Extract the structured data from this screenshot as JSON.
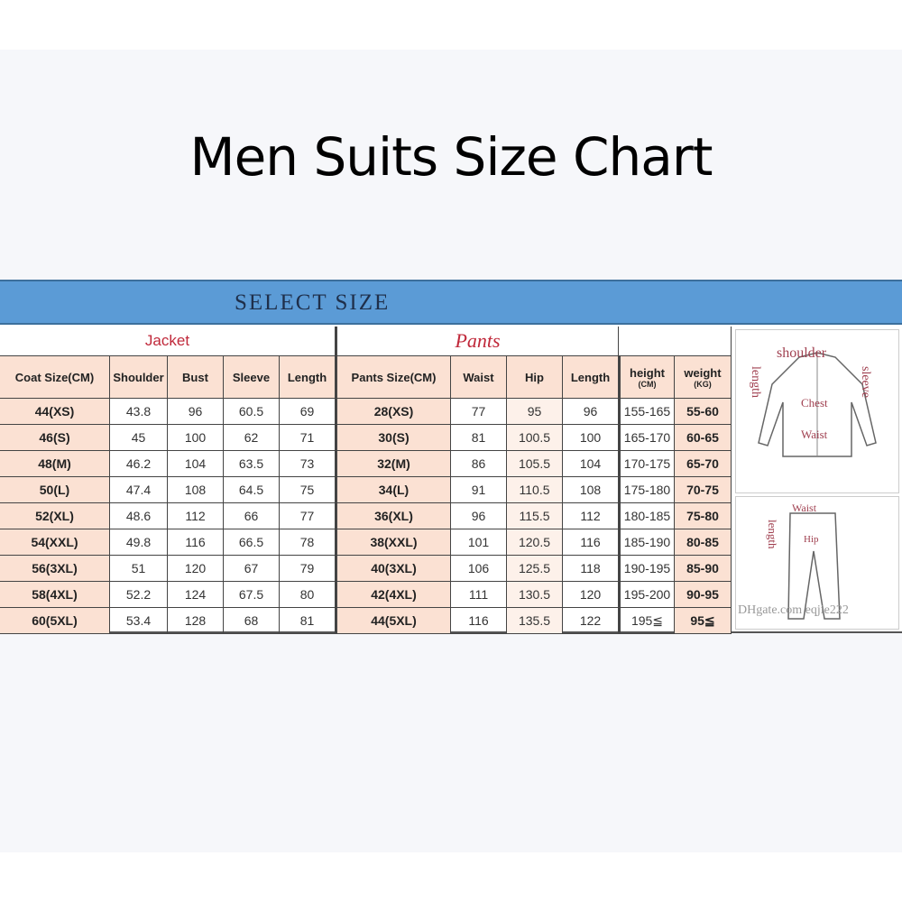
{
  "title": "Men Suits Size Chart",
  "banner": "SELECT SIZE",
  "sections": {
    "jacket": "Jacket",
    "pants": "Pants"
  },
  "colors": {
    "banner": "#5b9bd6",
    "header_cell": "#fbe1d3",
    "section_text": "#c0283a"
  },
  "chart_data": {
    "type": "table",
    "columns": [
      "Coat Size(CM)",
      "Shoulder",
      "Bust",
      "Sleeve",
      "Length",
      "Pants Size(CM)",
      "Waist",
      "Hip",
      "Length",
      "height",
      "weight"
    ],
    "units": {
      "height": "(CM)",
      "weight": "(KG)"
    },
    "rows": [
      [
        "44(XS)",
        "43.8",
        "96",
        "60.5",
        "69",
        "28(XS)",
        "77",
        "95",
        "96",
        "155-165",
        "55-60"
      ],
      [
        "46(S)",
        "45",
        "100",
        "62",
        "71",
        "30(S)",
        "81",
        "100.5",
        "100",
        "165-170",
        "60-65"
      ],
      [
        "48(M)",
        "46.2",
        "104",
        "63.5",
        "73",
        "32(M)",
        "86",
        "105.5",
        "104",
        "170-175",
        "65-70"
      ],
      [
        "50(L)",
        "47.4",
        "108",
        "64.5",
        "75",
        "34(L)",
        "91",
        "110.5",
        "108",
        "175-180",
        "70-75"
      ],
      [
        "52(XL)",
        "48.6",
        "112",
        "66",
        "77",
        "36(XL)",
        "96",
        "115.5",
        "112",
        "180-185",
        "75-80"
      ],
      [
        "54(XXL)",
        "49.8",
        "116",
        "66.5",
        "78",
        "38(XXL)",
        "101",
        "120.5",
        "116",
        "185-190",
        "80-85"
      ],
      [
        "56(3XL)",
        "51",
        "120",
        "67",
        "79",
        "40(3XL)",
        "106",
        "125.5",
        "118",
        "190-195",
        "85-90"
      ],
      [
        "58(4XL)",
        "52.2",
        "124",
        "67.5",
        "80",
        "42(4XL)",
        "111",
        "130.5",
        "120",
        "195-200",
        "90-95"
      ],
      [
        "60(5XL)",
        "53.4",
        "128",
        "68",
        "81",
        "44(5XL)",
        "116",
        "135.5",
        "122",
        "195≦",
        "95≦"
      ]
    ]
  },
  "diagram": {
    "jacket_labels": {
      "shoulder": "shoulder",
      "length": "length",
      "sleeve": "sleeve",
      "chest": "Chest",
      "waist": "Waist"
    },
    "pants_labels": {
      "waist": "Waist",
      "hip": "Hip",
      "length": "length"
    },
    "watermark": "DHgate.com  eqjie222"
  }
}
